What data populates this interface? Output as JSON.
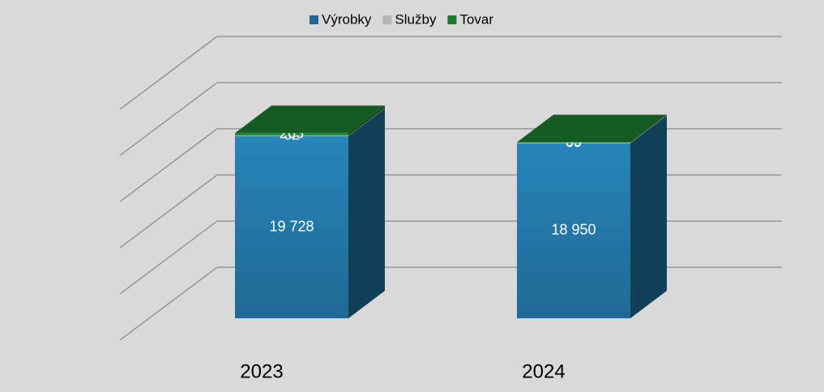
{
  "chart_data": {
    "type": "bar3d_stacked",
    "categories": [
      "2023",
      "2024"
    ],
    "series": [
      {
        "name": "Výrobky",
        "color": "#1f6a94",
        "values": [
          19728,
          18950
        ],
        "value_labels": [
          "19 728",
          "18 950"
        ]
      },
      {
        "name": "Služby",
        "color": "#b5b5b5",
        "values": [
          62,
          69
        ]
      },
      {
        "name": "Tovar",
        "color": "#1b7a2c",
        "values": [
          263,
          53
        ]
      }
    ],
    "ylim": [
      0,
      25000
    ],
    "yticks": [
      0,
      5000,
      10000,
      15000,
      20000,
      25000
    ],
    "grid": true,
    "legend": "top"
  }
}
